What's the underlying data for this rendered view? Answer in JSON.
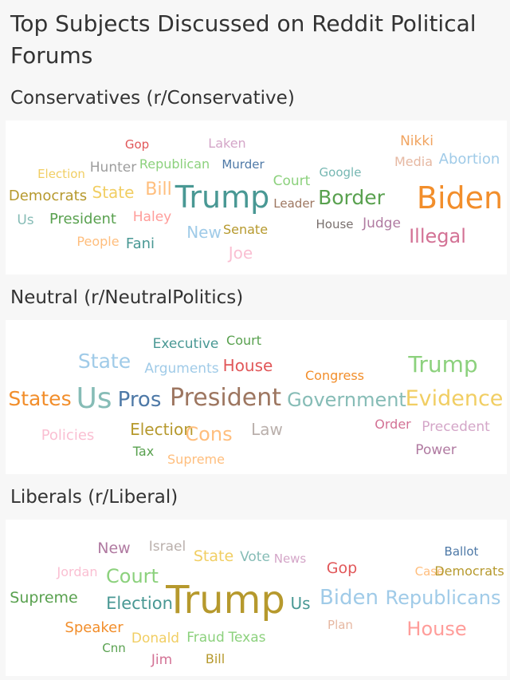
{
  "title": "Top Subjects Discussed on Reddit Political Forums",
  "sections": [
    {
      "heading": "Conservatives (r/Conservative)",
      "words": [
        {
          "text": "Gop",
          "color": "#e15759"
        },
        {
          "text": "Laken",
          "color": "#d4a6c8"
        },
        {
          "text": "Nikki",
          "color": "#f1a460"
        },
        {
          "text": "Hunter",
          "color": "#9d9d9d"
        },
        {
          "text": "Republican",
          "color": "#8cd17d"
        },
        {
          "text": "Murder",
          "color": "#4e79a7"
        },
        {
          "text": "Google",
          "color": "#76b7b2"
        },
        {
          "text": "Media",
          "color": "#e6b8a2"
        },
        {
          "text": "Abortion",
          "color": "#a0cbe8"
        },
        {
          "text": "Election",
          "color": "#f1ce63"
        },
        {
          "text": "Court",
          "color": "#8cd17d"
        },
        {
          "text": "Democrats",
          "color": "#b6992d"
        },
        {
          "text": "State",
          "color": "#f1ce63"
        },
        {
          "text": "Bill",
          "color": "#ffbe7d"
        },
        {
          "text": "Trump",
          "color": "#499894"
        },
        {
          "text": "Leader",
          "color": "#9d7660"
        },
        {
          "text": "Border",
          "color": "#59a14f"
        },
        {
          "text": "Biden",
          "color": "#f28e2b"
        },
        {
          "text": "Us",
          "color": "#86bcb6"
        },
        {
          "text": "President",
          "color": "#59a14f"
        },
        {
          "text": "Haley",
          "color": "#ff9d9a"
        },
        {
          "text": "House",
          "color": "#79706e"
        },
        {
          "text": "Judge",
          "color": "#b07aa1"
        },
        {
          "text": "New",
          "color": "#a0cbe8"
        },
        {
          "text": "Senate",
          "color": "#b6992d"
        },
        {
          "text": "Illegal",
          "color": "#d37295"
        },
        {
          "text": "People",
          "color": "#ffbe7d"
        },
        {
          "text": "Fani",
          "color": "#499894"
        },
        {
          "text": "Joe",
          "color": "#fabfd2"
        }
      ]
    },
    {
      "heading": "Neutral (r/NeutralPolitics)",
      "words": [
        {
          "text": "Executive",
          "color": "#499894"
        },
        {
          "text": "Court",
          "color": "#59a14f"
        },
        {
          "text": "State",
          "color": "#a0cbe8"
        },
        {
          "text": "House",
          "color": "#e15759"
        },
        {
          "text": "Trump",
          "color": "#8cd17d"
        },
        {
          "text": "Arguments",
          "color": "#a0cbe8"
        },
        {
          "text": "Congress",
          "color": "#f28e2b"
        },
        {
          "text": "States",
          "color": "#f28e2b"
        },
        {
          "text": "Us",
          "color": "#86bcb6"
        },
        {
          "text": "Pros",
          "color": "#4e79a7"
        },
        {
          "text": "President",
          "color": "#9d7660"
        },
        {
          "text": "Government",
          "color": "#86bcb6"
        },
        {
          "text": "Evidence",
          "color": "#f1ce63"
        },
        {
          "text": "Order",
          "color": "#d37295"
        },
        {
          "text": "Precedent",
          "color": "#d4a6c8"
        },
        {
          "text": "Election",
          "color": "#b6992d"
        },
        {
          "text": "Cons",
          "color": "#ffbe7d"
        },
        {
          "text": "Law",
          "color": "#bab0ac"
        },
        {
          "text": "Policies",
          "color": "#fabfd2"
        },
        {
          "text": "Power",
          "color": "#b07aa1"
        },
        {
          "text": "Tax",
          "color": "#59a14f"
        },
        {
          "text": "Supreme",
          "color": "#ffbe7d"
        }
      ]
    },
    {
      "heading": "Liberals (r/Liberal)",
      "words": [
        {
          "text": "New",
          "color": "#b07aa1"
        },
        {
          "text": "Israel",
          "color": "#bab0ac"
        },
        {
          "text": "Ballot",
          "color": "#4e79a7"
        },
        {
          "text": "State",
          "color": "#f1ce63"
        },
        {
          "text": "Vote",
          "color": "#86bcb6"
        },
        {
          "text": "News",
          "color": "#d4a6c8"
        },
        {
          "text": "Gop",
          "color": "#e15759"
        },
        {
          "text": "Jordan",
          "color": "#fabfd2"
        },
        {
          "text": "Court",
          "color": "#8cd17d"
        },
        {
          "text": "Case",
          "color": "#ffbe7d"
        },
        {
          "text": "Democrats",
          "color": "#b6992d"
        },
        {
          "text": "Supreme",
          "color": "#59a14f"
        },
        {
          "text": "Election",
          "color": "#499894"
        },
        {
          "text": "Trump",
          "color": "#b6992d"
        },
        {
          "text": "Us",
          "color": "#499894"
        },
        {
          "text": "Biden",
          "color": "#a0cbe8"
        },
        {
          "text": "Republicans",
          "color": "#a0cbe8"
        },
        {
          "text": "Plan",
          "color": "#e6b8a2"
        },
        {
          "text": "Speaker",
          "color": "#f28e2b"
        },
        {
          "text": "House",
          "color": "#ff9d9a"
        },
        {
          "text": "Cnn",
          "color": "#59a14f"
        },
        {
          "text": "Donald",
          "color": "#f1ce63"
        },
        {
          "text": "Fraud",
          "color": "#8cd17d"
        },
        {
          "text": "Texas",
          "color": "#8cd17d"
        },
        {
          "text": "Jim",
          "color": "#d37295"
        },
        {
          "text": "Bill",
          "color": "#b6992d"
        }
      ]
    }
  ]
}
